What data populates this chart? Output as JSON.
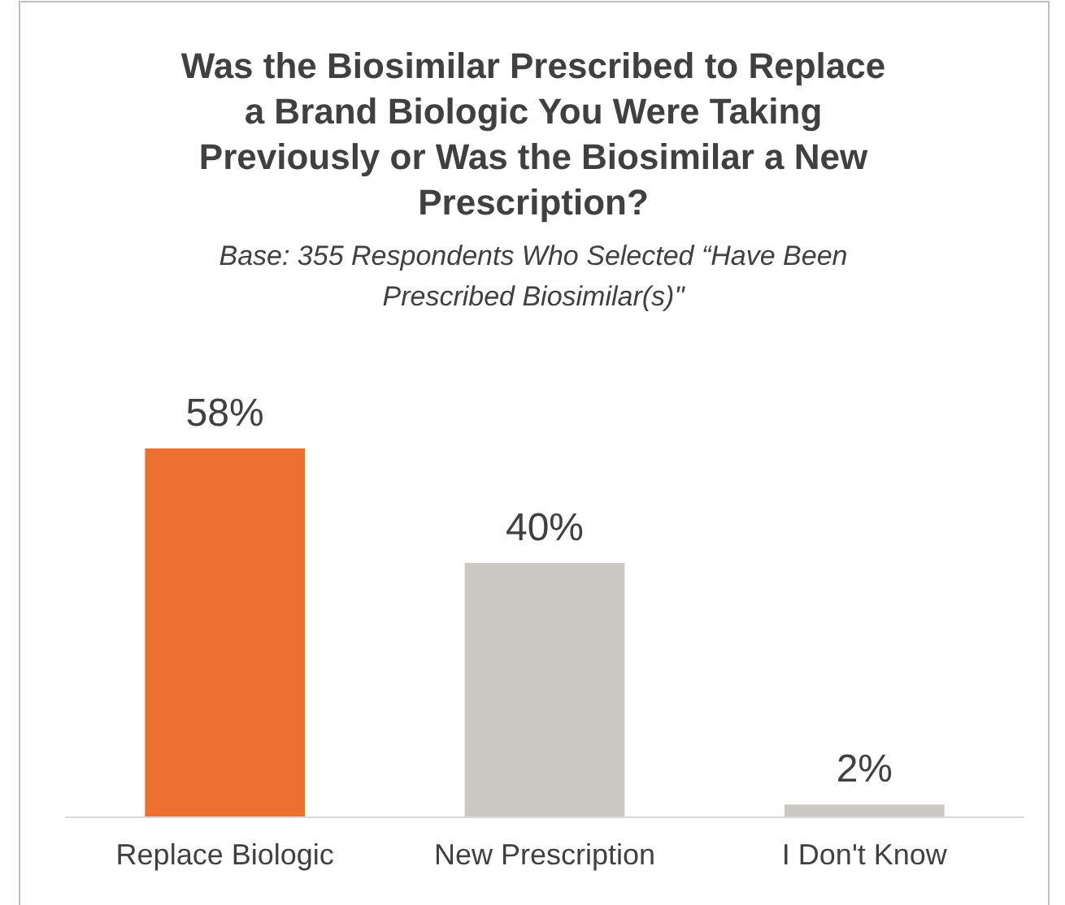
{
  "chart_data": {
    "type": "bar",
    "title": "Was the Biosimilar Prescribed to Replace a Brand Biologic You Were Taking Previously or Was the Biosimilar a New Prescription?",
    "subtitle": "Base: 355 Respondents Who Selected “Have Been Prescribed Biosimilar(s)\"",
    "categories": [
      "Replace Biologic",
      "New Prescription",
      "I Don't Know"
    ],
    "values": [
      58,
      40,
      2
    ],
    "colors": [
      "#ed7031",
      "#cbc7c3",
      "#cbc7c3"
    ],
    "value_labels": [
      "58%",
      "40%",
      "2%"
    ]
  }
}
